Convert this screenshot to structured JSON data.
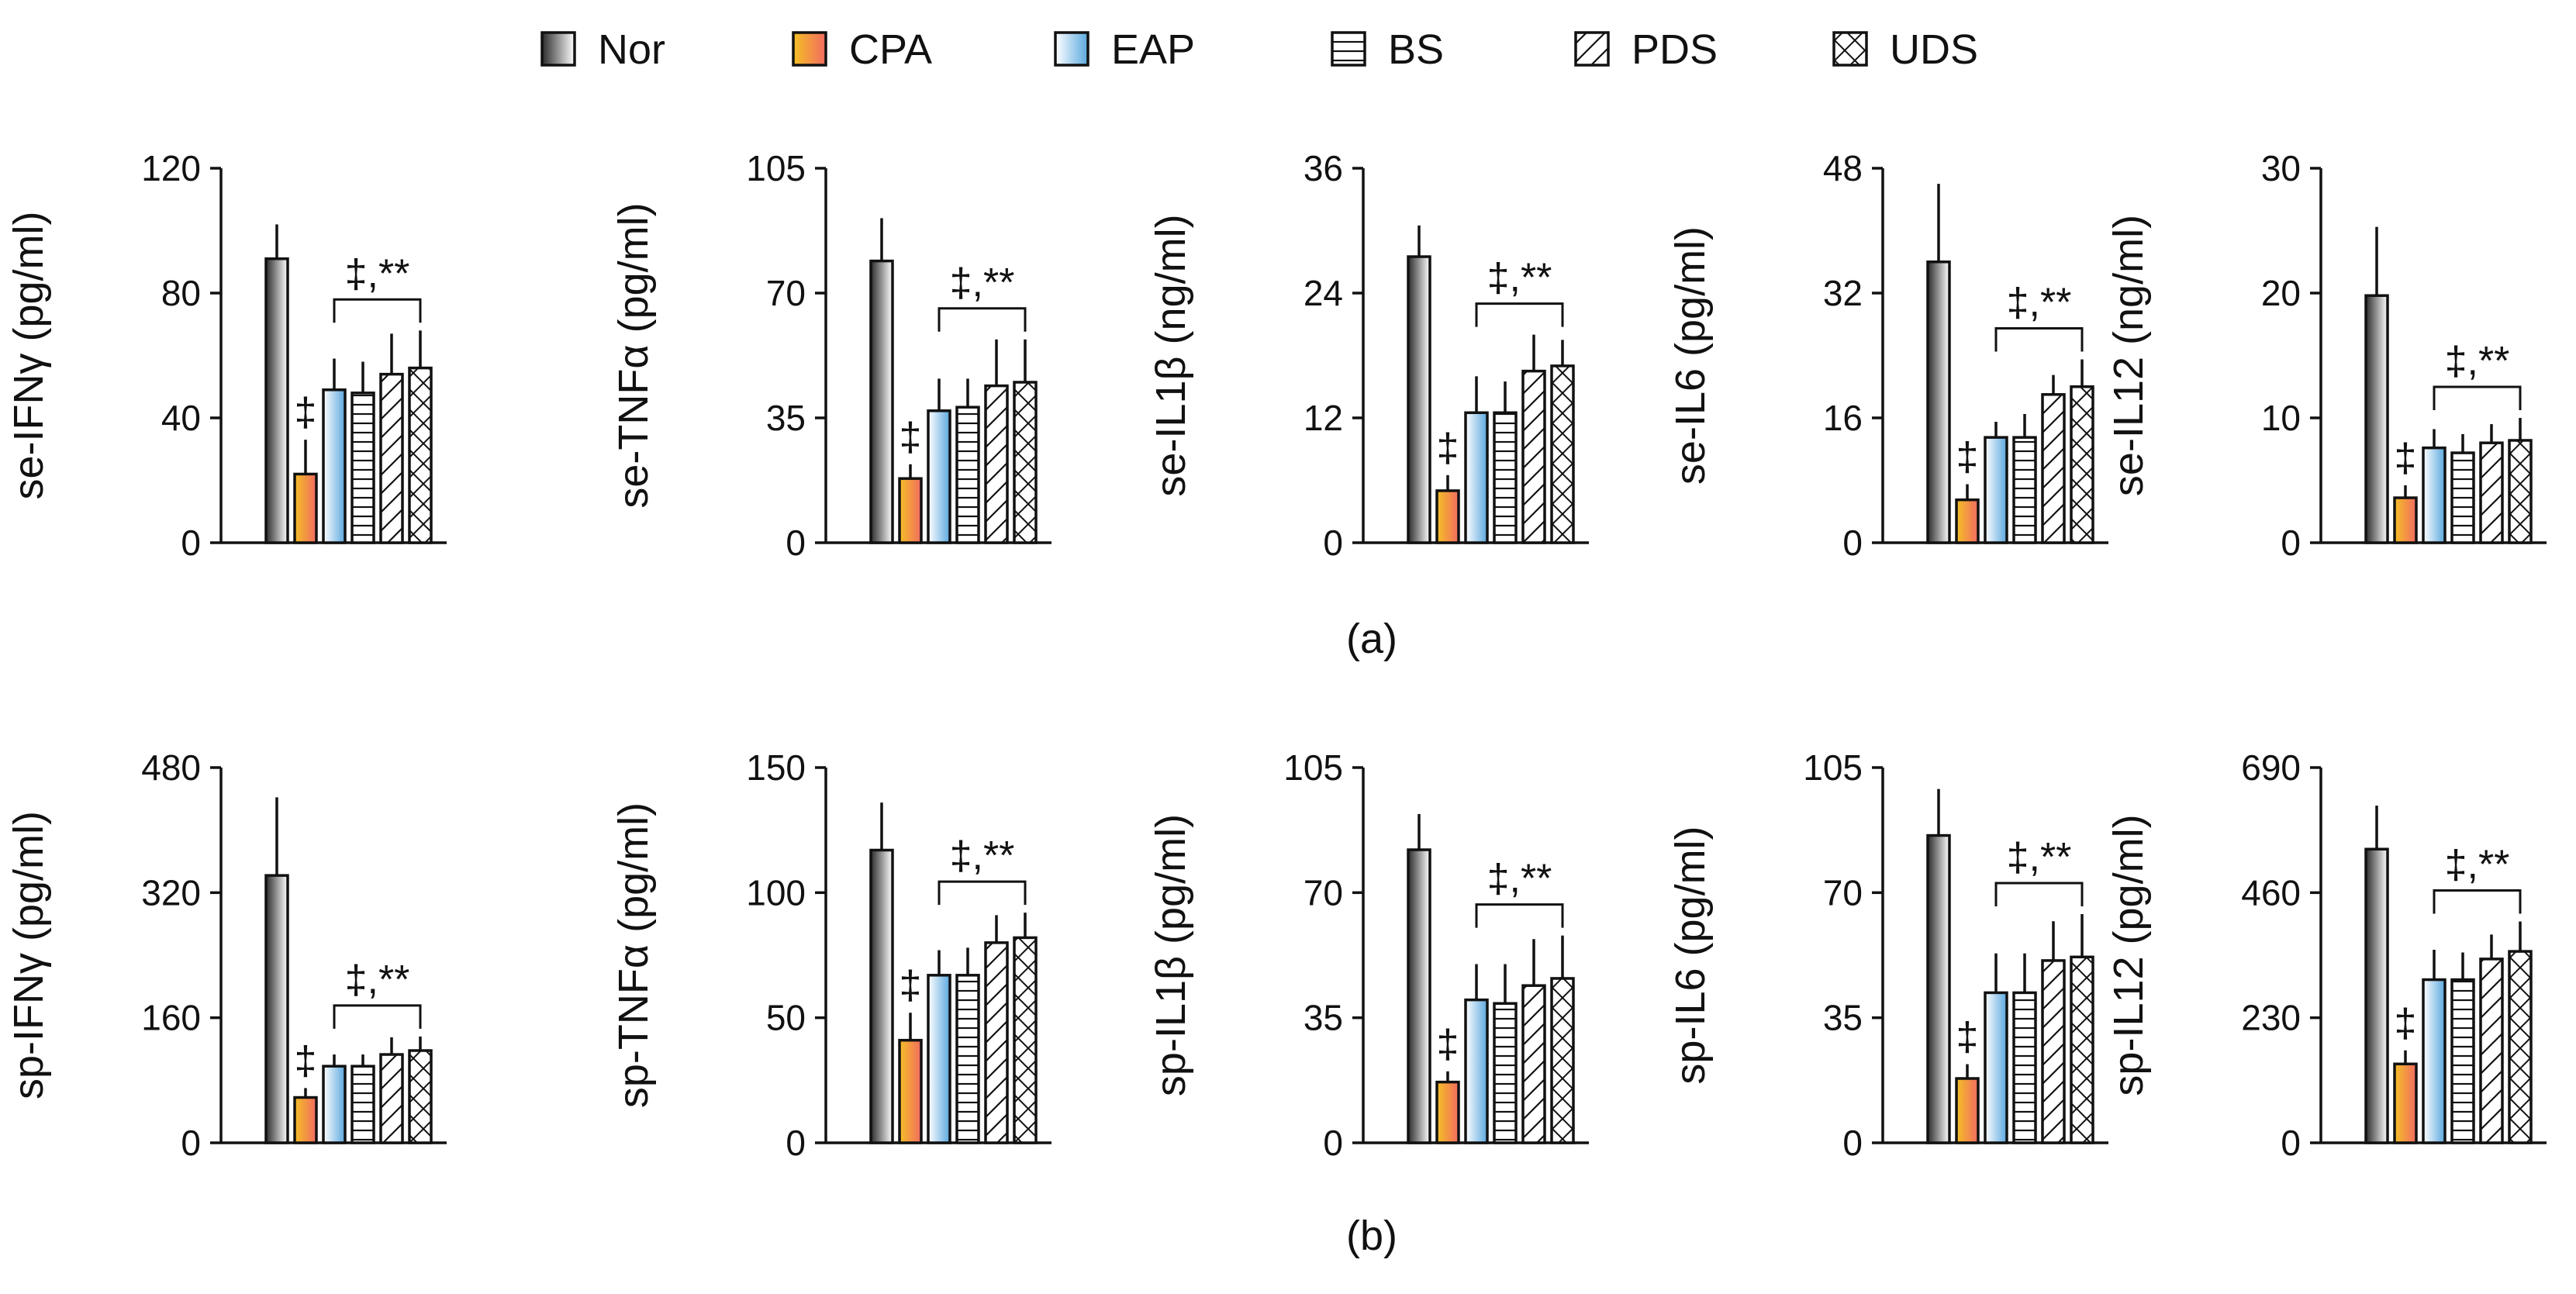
{
  "groups": [
    {
      "name": "Nor",
      "fill": "gradient-nor"
    },
    {
      "name": "CPA",
      "fill": "gradient-cpa"
    },
    {
      "name": "EAP",
      "fill": "gradient-eap"
    },
    {
      "name": "BS",
      "fill": "pattern-horizontal"
    },
    {
      "name": "PDS",
      "fill": "pattern-diagonal"
    },
    {
      "name": "UDS",
      "fill": "pattern-crosshatch"
    }
  ],
  "colors": {
    "nor_dark": "#2b2b2b",
    "nor_light": "#ffffff",
    "cpa_dark": "#f4c025",
    "cpa_light": "#f26b61",
    "eap_dark": "#ffffff",
    "eap_light": "#5aa8df",
    "line": "#111111"
  },
  "panels": [
    {
      "label": "(a)",
      "charts": [
        {
          "type": "bar",
          "ylabel": "se-IFNγ (pg/ml)",
          "ylim": [
            0,
            120
          ],
          "ticks": [
            0,
            40,
            80,
            120
          ],
          "values": [
            91,
            22,
            49,
            48,
            54,
            56
          ],
          "errors": [
            11,
            11,
            10,
            10,
            13,
            12
          ],
          "cpa_mark": "‡",
          "group_mark": "‡,**"
        },
        {
          "type": "bar",
          "ylabel": "se-TNFα (pg/ml)",
          "ylim": [
            0,
            105
          ],
          "ticks": [
            0,
            35,
            70,
            105
          ],
          "values": [
            79,
            18,
            37,
            38,
            44,
            45
          ],
          "errors": [
            12,
            4,
            9,
            8,
            13,
            12
          ],
          "cpa_mark": "‡",
          "group_mark": "‡,**"
        },
        {
          "type": "bar",
          "ylabel": "se-IL1β (ng/ml)",
          "ylim": [
            0,
            36
          ],
          "ticks": [
            0,
            12,
            24,
            36
          ],
          "values": [
            27.5,
            5,
            12.5,
            12.5,
            16.5,
            17
          ],
          "errors": [
            3,
            1.5,
            3.5,
            3,
            3.5,
            2.5
          ],
          "cpa_mark": "‡",
          "group_mark": "‡,**"
        },
        {
          "type": "bar",
          "ylabel": "se-IL6 (pg/ml)",
          "ylim": [
            0,
            48
          ],
          "ticks": [
            0,
            16,
            32,
            48
          ],
          "values": [
            36,
            5.5,
            13.5,
            13.5,
            19,
            20
          ],
          "errors": [
            10,
            2,
            2,
            3,
            2.5,
            3.5
          ],
          "cpa_mark": "‡",
          "group_mark": "‡,**"
        },
        {
          "type": "bar",
          "ylabel": "se-IL12 (ng/ml)",
          "ylim": [
            0,
            30
          ],
          "ticks": [
            0,
            10,
            20,
            30
          ],
          "values": [
            19.8,
            3.6,
            7.6,
            7.2,
            8,
            8.2
          ],
          "errors": [
            5.5,
            1,
            1.5,
            1.5,
            1.5,
            1.8
          ],
          "cpa_mark": "‡",
          "group_mark": "‡,**"
        }
      ]
    },
    {
      "label": "(b)",
      "charts": [
        {
          "type": "bar",
          "ylabel": "sp-IFNγ (pg/ml)",
          "ylim": [
            0,
            480
          ],
          "ticks": [
            0,
            160,
            320,
            480
          ],
          "values": [
            342,
            58,
            98,
            98,
            113,
            118
          ],
          "errors": [
            100,
            12,
            15,
            15,
            22,
            18
          ],
          "cpa_mark": "‡",
          "group_mark": "‡,**"
        },
        {
          "type": "bar",
          "ylabel": "sp-TNFα (pg/ml)",
          "ylim": [
            0,
            150
          ],
          "ticks": [
            0,
            50,
            100,
            150
          ],
          "values": [
            117,
            41,
            67,
            67,
            80,
            82
          ],
          "errors": [
            19,
            11,
            10,
            11,
            11,
            10
          ],
          "cpa_mark": "‡",
          "group_mark": "‡,**"
        },
        {
          "type": "bar",
          "ylabel": "sp-IL1β (pg/ml)",
          "ylim": [
            0,
            105
          ],
          "ticks": [
            0,
            35,
            70,
            105
          ],
          "values": [
            82,
            17,
            40,
            39,
            44,
            46
          ],
          "errors": [
            10,
            3,
            10,
            11,
            13,
            12
          ],
          "cpa_mark": "‡",
          "group_mark": "‡,**"
        },
        {
          "type": "bar",
          "ylabel": "sp-IL6 (pg/ml)",
          "ylim": [
            0,
            105
          ],
          "ticks": [
            0,
            35,
            70,
            105
          ],
          "values": [
            86,
            18,
            42,
            42,
            51,
            52
          ],
          "errors": [
            13,
            4,
            11,
            11,
            11,
            12
          ],
          "cpa_mark": "‡",
          "group_mark": "‡,**"
        },
        {
          "type": "bar",
          "ylabel": "sp-IL12 (pg/ml)",
          "ylim": [
            0,
            690
          ],
          "ticks": [
            0,
            230,
            460,
            690
          ],
          "values": [
            540,
            145,
            300,
            300,
            338,
            352
          ],
          "errors": [
            80,
            25,
            55,
            50,
            45,
            55
          ],
          "cpa_mark": "‡",
          "group_mark": "‡,**"
        }
      ]
    }
  ]
}
